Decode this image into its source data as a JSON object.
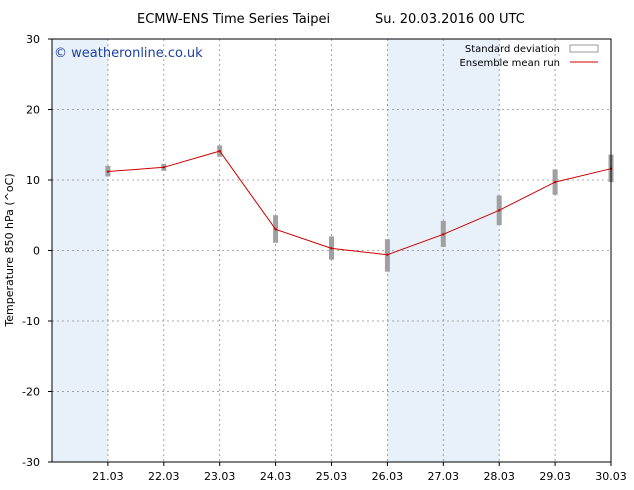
{
  "header": {
    "title_left": "ECMW-ENS Time Series Taipei",
    "title_right": "Su. 20.03.2016 00 UTC"
  },
  "watermark": "© weatheronline.co.uk",
  "legend": {
    "std_label": "Standard deviation",
    "mean_label": "Ensemble mean run",
    "placement": "top-right"
  },
  "colors": {
    "mean_line": "#cc0000",
    "std_bar": "#a0a0a0",
    "shade": "#e8f1f9",
    "grid": "#8c8c8c",
    "watermark": "#1a3fa6"
  },
  "chart_data": {
    "type": "line",
    "title": "ECMW-ENS Time Series Taipei",
    "xlabel": "",
    "ylabel": "Temperature 850 hPa (^oC)",
    "ylim": [
      -30,
      30
    ],
    "yticks": [
      -30,
      -20,
      -10,
      0,
      10,
      20,
      30
    ],
    "xlim": [
      20.03,
      30.03
    ],
    "xticks": [
      21.03,
      22.03,
      23.03,
      24.03,
      25.03,
      26.03,
      27.03,
      28.03,
      29.03,
      30.03
    ],
    "xtick_labels": [
      "21.03",
      "22.03",
      "23.03",
      "24.03",
      "25.03",
      "26.03",
      "27.03",
      "28.03",
      "29.03",
      "30.03"
    ],
    "grid": true,
    "shaded_x_ranges": [
      [
        20.03,
        21.03
      ],
      [
        26.03,
        28.03
      ]
    ],
    "series": [
      {
        "name": "Ensemble mean run",
        "x": [
          21.03,
          22.03,
          23.03,
          24.03,
          25.03,
          26.03,
          27.03,
          28.03,
          29.03,
          30.03
        ],
        "values": [
          11.2,
          11.8,
          14.1,
          3.0,
          0.3,
          -0.6,
          2.3,
          5.7,
          9.7,
          11.6
        ]
      },
      {
        "name": "Standard deviation",
        "x": [
          21.03,
          22.03,
          23.03,
          24.03,
          25.03,
          26.03,
          27.03,
          28.03,
          29.03,
          30.03
        ],
        "low": [
          10.5,
          11.3,
          13.3,
          1.1,
          -1.3,
          -3.0,
          0.5,
          3.6,
          7.9,
          9.7
        ],
        "high": [
          12.0,
          12.3,
          14.9,
          5.0,
          2.0,
          1.6,
          4.2,
          7.8,
          11.5,
          13.6
        ]
      }
    ]
  }
}
